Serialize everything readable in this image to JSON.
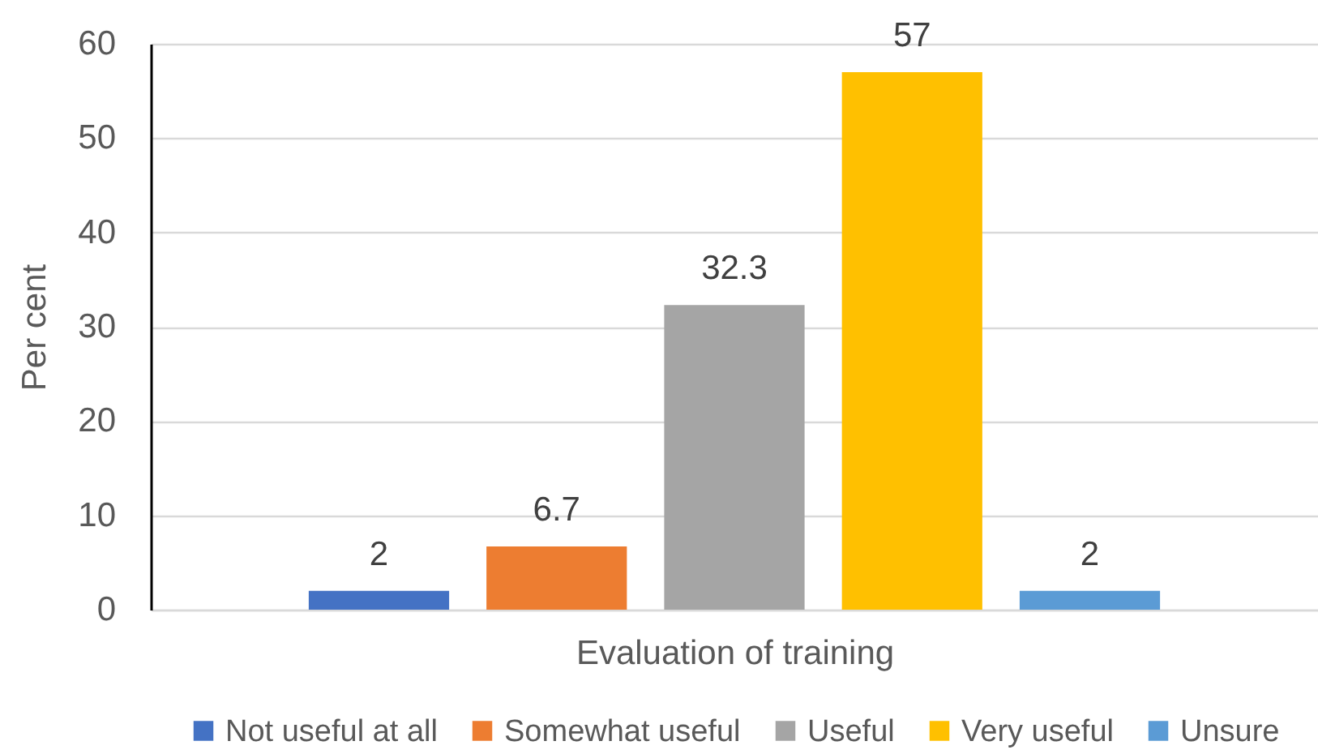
{
  "chart_data": {
    "type": "bar",
    "xlabel": "Evaluation of training",
    "ylabel": "Per cent",
    "categories": [
      null
    ],
    "series": [
      {
        "name": "Not useful at all",
        "color": "#4472c4",
        "values": [
          2
        ]
      },
      {
        "name": "Somewhat useful",
        "color": "#ed7d31",
        "values": [
          6.7
        ]
      },
      {
        "name": "Useful",
        "color": "#a5a5a5",
        "values": [
          32.3
        ]
      },
      {
        "name": "Very useful",
        "color": "#ffc000",
        "values": [
          57
        ]
      },
      {
        "name": "Unsure",
        "color": "#5b9bd5",
        "values": [
          2
        ]
      }
    ],
    "ylim": [
      0,
      60
    ],
    "yticks": [
      0,
      10,
      20,
      30,
      40,
      50,
      60
    ],
    "grid": "y",
    "legend": "bottom",
    "data_labels": true
  }
}
